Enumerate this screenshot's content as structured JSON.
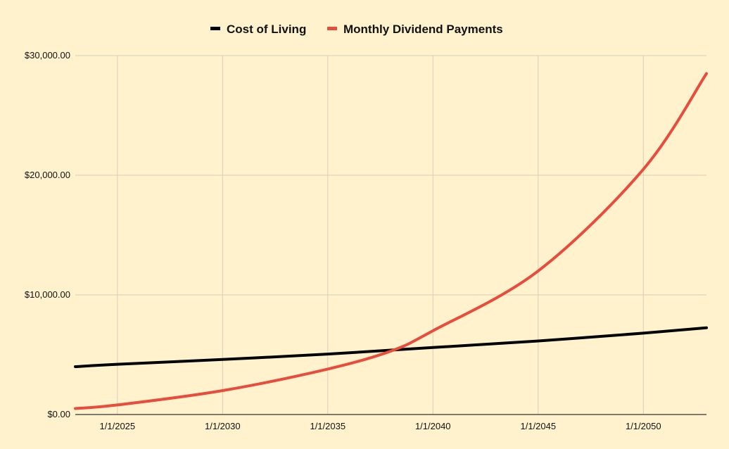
{
  "chart_data": {
    "type": "line",
    "title": "",
    "xlabel": "",
    "ylabel": "",
    "x_axis": {
      "type": "date",
      "range": [
        "2023-01-01",
        "2053-01-01"
      ],
      "ticks": [
        {
          "date": "2025-01-01",
          "label": "1/1/2025"
        },
        {
          "date": "2030-01-01",
          "label": "1/1/2030"
        },
        {
          "date": "2035-01-01",
          "label": "1/1/2035"
        },
        {
          "date": "2040-01-01",
          "label": "1/1/2040"
        },
        {
          "date": "2045-01-01",
          "label": "1/1/2045"
        },
        {
          "date": "2050-01-01",
          "label": "1/1/2050"
        }
      ]
    },
    "y_axis": {
      "range": [
        0,
        30000
      ],
      "ticks": [
        {
          "value": 0,
          "label": "$0.00"
        },
        {
          "value": 10000,
          "label": "$10,000.00"
        },
        {
          "value": 20000,
          "label": "$20,000.00"
        },
        {
          "value": 30000,
          "label": "$30,000.00"
        }
      ]
    },
    "grid": true,
    "legend": {
      "position": "top-center"
    },
    "series": [
      {
        "name": "Cost of Living",
        "color": "#000000",
        "points": [
          {
            "x": "2023-01-01",
            "y": 4000
          },
          {
            "x": "2025-01-01",
            "y": 4200
          },
          {
            "x": "2030-01-01",
            "y": 4600
          },
          {
            "x": "2035-01-01",
            "y": 5050
          },
          {
            "x": "2040-01-01",
            "y": 5600
          },
          {
            "x": "2045-01-01",
            "y": 6150
          },
          {
            "x": "2050-01-01",
            "y": 6800
          },
          {
            "x": "2053-01-01",
            "y": 7250
          }
        ]
      },
      {
        "name": "Monthly Dividend Payments",
        "color": "#e74c3c",
        "points": [
          {
            "x": "2023-01-01",
            "y": 500
          },
          {
            "x": "2025-01-01",
            "y": 800
          },
          {
            "x": "2030-01-01",
            "y": 2000
          },
          {
            "x": "2035-01-01",
            "y": 3800
          },
          {
            "x": "2038-01-01",
            "y": 5300
          },
          {
            "x": "2040-01-01",
            "y": 7000
          },
          {
            "x": "2045-01-01",
            "y": 12000
          },
          {
            "x": "2050-01-01",
            "y": 20500
          },
          {
            "x": "2053-01-01",
            "y": 28500
          }
        ]
      }
    ]
  }
}
